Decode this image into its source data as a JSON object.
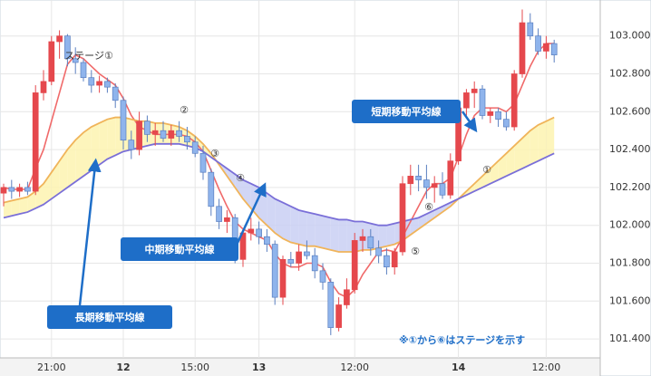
{
  "chart_data": {
    "type": "candlestick",
    "categories": [
      null,
      null,
      null,
      null,
      null,
      null,
      "21:00",
      null,
      null,
      null,
      null,
      null,
      null,
      null,
      null,
      "12",
      null,
      null,
      null,
      null,
      null,
      null,
      null,
      null,
      "15:00",
      null,
      null,
      null,
      null,
      null,
      null,
      null,
      "13",
      null,
      null,
      null,
      null,
      null,
      null,
      null,
      null,
      null,
      null,
      null,
      "12:00",
      null,
      null,
      null,
      null,
      null,
      null,
      null,
      null,
      null,
      null,
      null,
      null,
      "14",
      null,
      null,
      null,
      null,
      null,
      null,
      null,
      null,
      null,
      null,
      "12:00",
      null
    ],
    "ohlc": [
      [
        102.17,
        102.22,
        102.1,
        102.2
      ],
      [
        102.2,
        102.24,
        102.14,
        102.18
      ],
      [
        102.18,
        102.22,
        102.15,
        102.2
      ],
      [
        102.2,
        102.23,
        102.16,
        102.18
      ],
      [
        102.18,
        102.74,
        102.16,
        102.7
      ],
      [
        102.7,
        102.82,
        102.66,
        102.76
      ],
      [
        102.76,
        103.0,
        102.74,
        102.97
      ],
      [
        102.97,
        103.03,
        102.88,
        103.0
      ],
      [
        103.0,
        103.01,
        102.84,
        102.88
      ],
      [
        102.88,
        102.94,
        102.8,
        102.86
      ],
      [
        102.86,
        102.88,
        102.76,
        102.78
      ],
      [
        102.78,
        102.82,
        102.7,
        102.74
      ],
      [
        102.74,
        102.79,
        102.7,
        102.76
      ],
      [
        102.76,
        102.78,
        102.7,
        102.73
      ],
      [
        102.73,
        102.75,
        102.62,
        102.66
      ],
      [
        102.66,
        102.68,
        102.4,
        102.45
      ],
      [
        102.45,
        102.5,
        102.35,
        102.4
      ],
      [
        102.4,
        102.6,
        102.37,
        102.55
      ],
      [
        102.55,
        102.58,
        102.44,
        102.48
      ],
      [
        102.48,
        102.54,
        102.42,
        102.5
      ],
      [
        102.5,
        102.55,
        102.44,
        102.46
      ],
      [
        102.46,
        102.53,
        102.42,
        102.5
      ],
      [
        102.5,
        102.55,
        102.44,
        102.47
      ],
      [
        102.47,
        102.52,
        102.4,
        102.44
      ],
      [
        102.44,
        102.47,
        102.36,
        102.38
      ],
      [
        102.38,
        102.42,
        102.24,
        102.28
      ],
      [
        102.28,
        102.3,
        102.05,
        102.1
      ],
      [
        102.1,
        102.14,
        101.98,
        102.02
      ],
      [
        102.02,
        102.08,
        101.96,
        102.04
      ],
      [
        102.04,
        102.06,
        101.8,
        101.82
      ],
      [
        101.82,
        101.98,
        101.78,
        101.96
      ],
      [
        101.96,
        102.04,
        101.92,
        101.98
      ],
      [
        101.98,
        102.02,
        101.9,
        101.94
      ],
      [
        101.94,
        101.98,
        101.86,
        101.9
      ],
      [
        101.9,
        101.92,
        101.58,
        101.62
      ],
      [
        101.62,
        101.84,
        101.58,
        101.82
      ],
      [
        101.82,
        101.86,
        101.78,
        101.8
      ],
      [
        101.8,
        101.9,
        101.76,
        101.86
      ],
      [
        101.86,
        101.92,
        101.82,
        101.84
      ],
      [
        101.84,
        101.88,
        101.72,
        101.76
      ],
      [
        101.76,
        101.8,
        101.66,
        101.7
      ],
      [
        101.7,
        101.72,
        101.42,
        101.46
      ],
      [
        101.46,
        101.62,
        101.44,
        101.58
      ],
      [
        101.58,
        101.72,
        101.56,
        101.66
      ],
      [
        101.66,
        101.96,
        101.64,
        101.92
      ],
      [
        101.92,
        101.98,
        101.86,
        101.94
      ],
      [
        101.94,
        101.98,
        101.84,
        101.88
      ],
      [
        101.88,
        101.92,
        101.8,
        101.84
      ],
      [
        101.84,
        101.88,
        101.74,
        101.78
      ],
      [
        101.78,
        101.88,
        101.74,
        101.86
      ],
      [
        101.86,
        102.26,
        101.84,
        102.22
      ],
      [
        102.22,
        102.32,
        102.16,
        102.26
      ],
      [
        102.26,
        102.32,
        102.18,
        102.24
      ],
      [
        102.24,
        102.32,
        102.14,
        102.2
      ],
      [
        102.2,
        102.26,
        102.12,
        102.22
      ],
      [
        102.22,
        102.28,
        102.14,
        102.16
      ],
      [
        102.16,
        102.38,
        102.14,
        102.34
      ],
      [
        102.34,
        102.66,
        102.32,
        102.62
      ],
      [
        102.62,
        102.72,
        102.58,
        102.7
      ],
      [
        102.7,
        102.76,
        102.62,
        102.72
      ],
      [
        102.72,
        102.74,
        102.56,
        102.58
      ],
      [
        102.58,
        102.62,
        102.54,
        102.6
      ],
      [
        102.6,
        102.62,
        102.52,
        102.56
      ],
      [
        102.56,
        102.6,
        102.5,
        102.52
      ],
      [
        102.52,
        102.82,
        102.5,
        102.8
      ],
      [
        102.8,
        103.14,
        102.78,
        103.07
      ],
      [
        103.07,
        103.12,
        102.98,
        103.0
      ],
      [
        103.0,
        103.04,
        102.9,
        102.92
      ],
      [
        102.92,
        103.0,
        102.88,
        102.96
      ],
      [
        102.96,
        102.98,
        102.86,
        102.9
      ]
    ],
    "up_color": "#e5484d",
    "down_color": "#8fb4ec",
    "lines": [
      {
        "color": "#f06a6a",
        "values": [
          102.2,
          102.19,
          102.19,
          102.19,
          102.3,
          102.4,
          102.55,
          102.7,
          102.85,
          102.9,
          102.88,
          102.84,
          102.8,
          102.77,
          102.74,
          102.67,
          102.58,
          102.52,
          102.5,
          102.48,
          102.48,
          102.48,
          102.48,
          102.47,
          102.44,
          102.39,
          102.29,
          102.19,
          102.1,
          102.02,
          101.98,
          101.96,
          101.94,
          101.92,
          101.85,
          101.8,
          101.78,
          101.78,
          101.8,
          101.8,
          101.78,
          101.7,
          101.64,
          101.62,
          101.66,
          101.74,
          101.8,
          101.86,
          101.87,
          101.86,
          101.94,
          102.02,
          102.1,
          102.18,
          102.22,
          102.22,
          102.25,
          102.36,
          102.48,
          102.58,
          102.62,
          102.62,
          102.62,
          102.6,
          102.64,
          102.74,
          102.84,
          102.92,
          102.96,
          102.96
        ]
      },
      {
        "color": "#f0b45a",
        "values": [
          102.12,
          102.13,
          102.14,
          102.15,
          102.18,
          102.22,
          102.28,
          102.34,
          102.4,
          102.45,
          102.49,
          102.52,
          102.54,
          102.56,
          102.57,
          102.57,
          102.56,
          102.55,
          102.55,
          102.54,
          102.54,
          102.53,
          102.52,
          102.5,
          102.47,
          102.43,
          102.38,
          102.32,
          102.26,
          102.2,
          102.14,
          102.09,
          102.04,
          102.0,
          101.96,
          101.93,
          101.91,
          101.9,
          101.89,
          101.89,
          101.88,
          101.87,
          101.86,
          101.86,
          101.86,
          101.87,
          101.87,
          101.88,
          101.89,
          101.9,
          101.92,
          101.95,
          101.98,
          102.01,
          102.04,
          102.07,
          102.1,
          102.14,
          102.18,
          102.22,
          102.26,
          102.3,
          102.34,
          102.38,
          102.42,
          102.46,
          102.5,
          102.53,
          102.55,
          102.57
        ]
      },
      {
        "color": "#7a6fd8",
        "values": [
          102.04,
          102.05,
          102.06,
          102.07,
          102.09,
          102.11,
          102.14,
          102.17,
          102.2,
          102.23,
          102.26,
          102.29,
          102.32,
          102.35,
          102.37,
          102.39,
          102.4,
          102.41,
          102.42,
          102.43,
          102.43,
          102.43,
          102.43,
          102.42,
          102.41,
          102.39,
          102.36,
          102.33,
          102.3,
          102.27,
          102.24,
          102.22,
          102.2,
          102.17,
          102.14,
          102.12,
          102.1,
          102.08,
          102.07,
          102.06,
          102.05,
          102.04,
          102.03,
          102.03,
          102.02,
          102.02,
          102.01,
          102.0,
          102.0,
          102.01,
          102.02,
          102.03,
          102.04,
          102.06,
          102.08,
          102.1,
          102.12,
          102.14,
          102.16,
          102.18,
          102.2,
          102.22,
          102.24,
          102.26,
          102.28,
          102.3,
          102.32,
          102.34,
          102.36,
          102.38
        ]
      }
    ],
    "fill_above_color": "#fdf3b0",
    "fill_below_color": "#c9cff3",
    "ylim": [
      101.3,
      103.19
    ],
    "yticks": [
      {
        "value": 101.4,
        "label": "101.400"
      },
      {
        "value": 101.6,
        "label": "101.600"
      },
      {
        "value": 101.8,
        "label": "101.800"
      },
      {
        "value": 102.0,
        "label": "102.000"
      },
      {
        "value": 102.2,
        "label": "102.200"
      },
      {
        "value": 102.4,
        "label": "102.400"
      },
      {
        "value": 102.6,
        "label": "102.600"
      },
      {
        "value": 102.8,
        "label": "102.800"
      },
      {
        "value": 103.0,
        "label": "103.000"
      }
    ],
    "grid": true,
    "annotations": [
      "ステージ①",
      "②",
      "③",
      "④",
      "⑤",
      "⑥",
      "①"
    ],
    "callouts": [
      "短期移動平均線",
      "中期移動平均線",
      "長期移動平均線"
    ],
    "note": "※①から⑥はステージを示す"
  }
}
